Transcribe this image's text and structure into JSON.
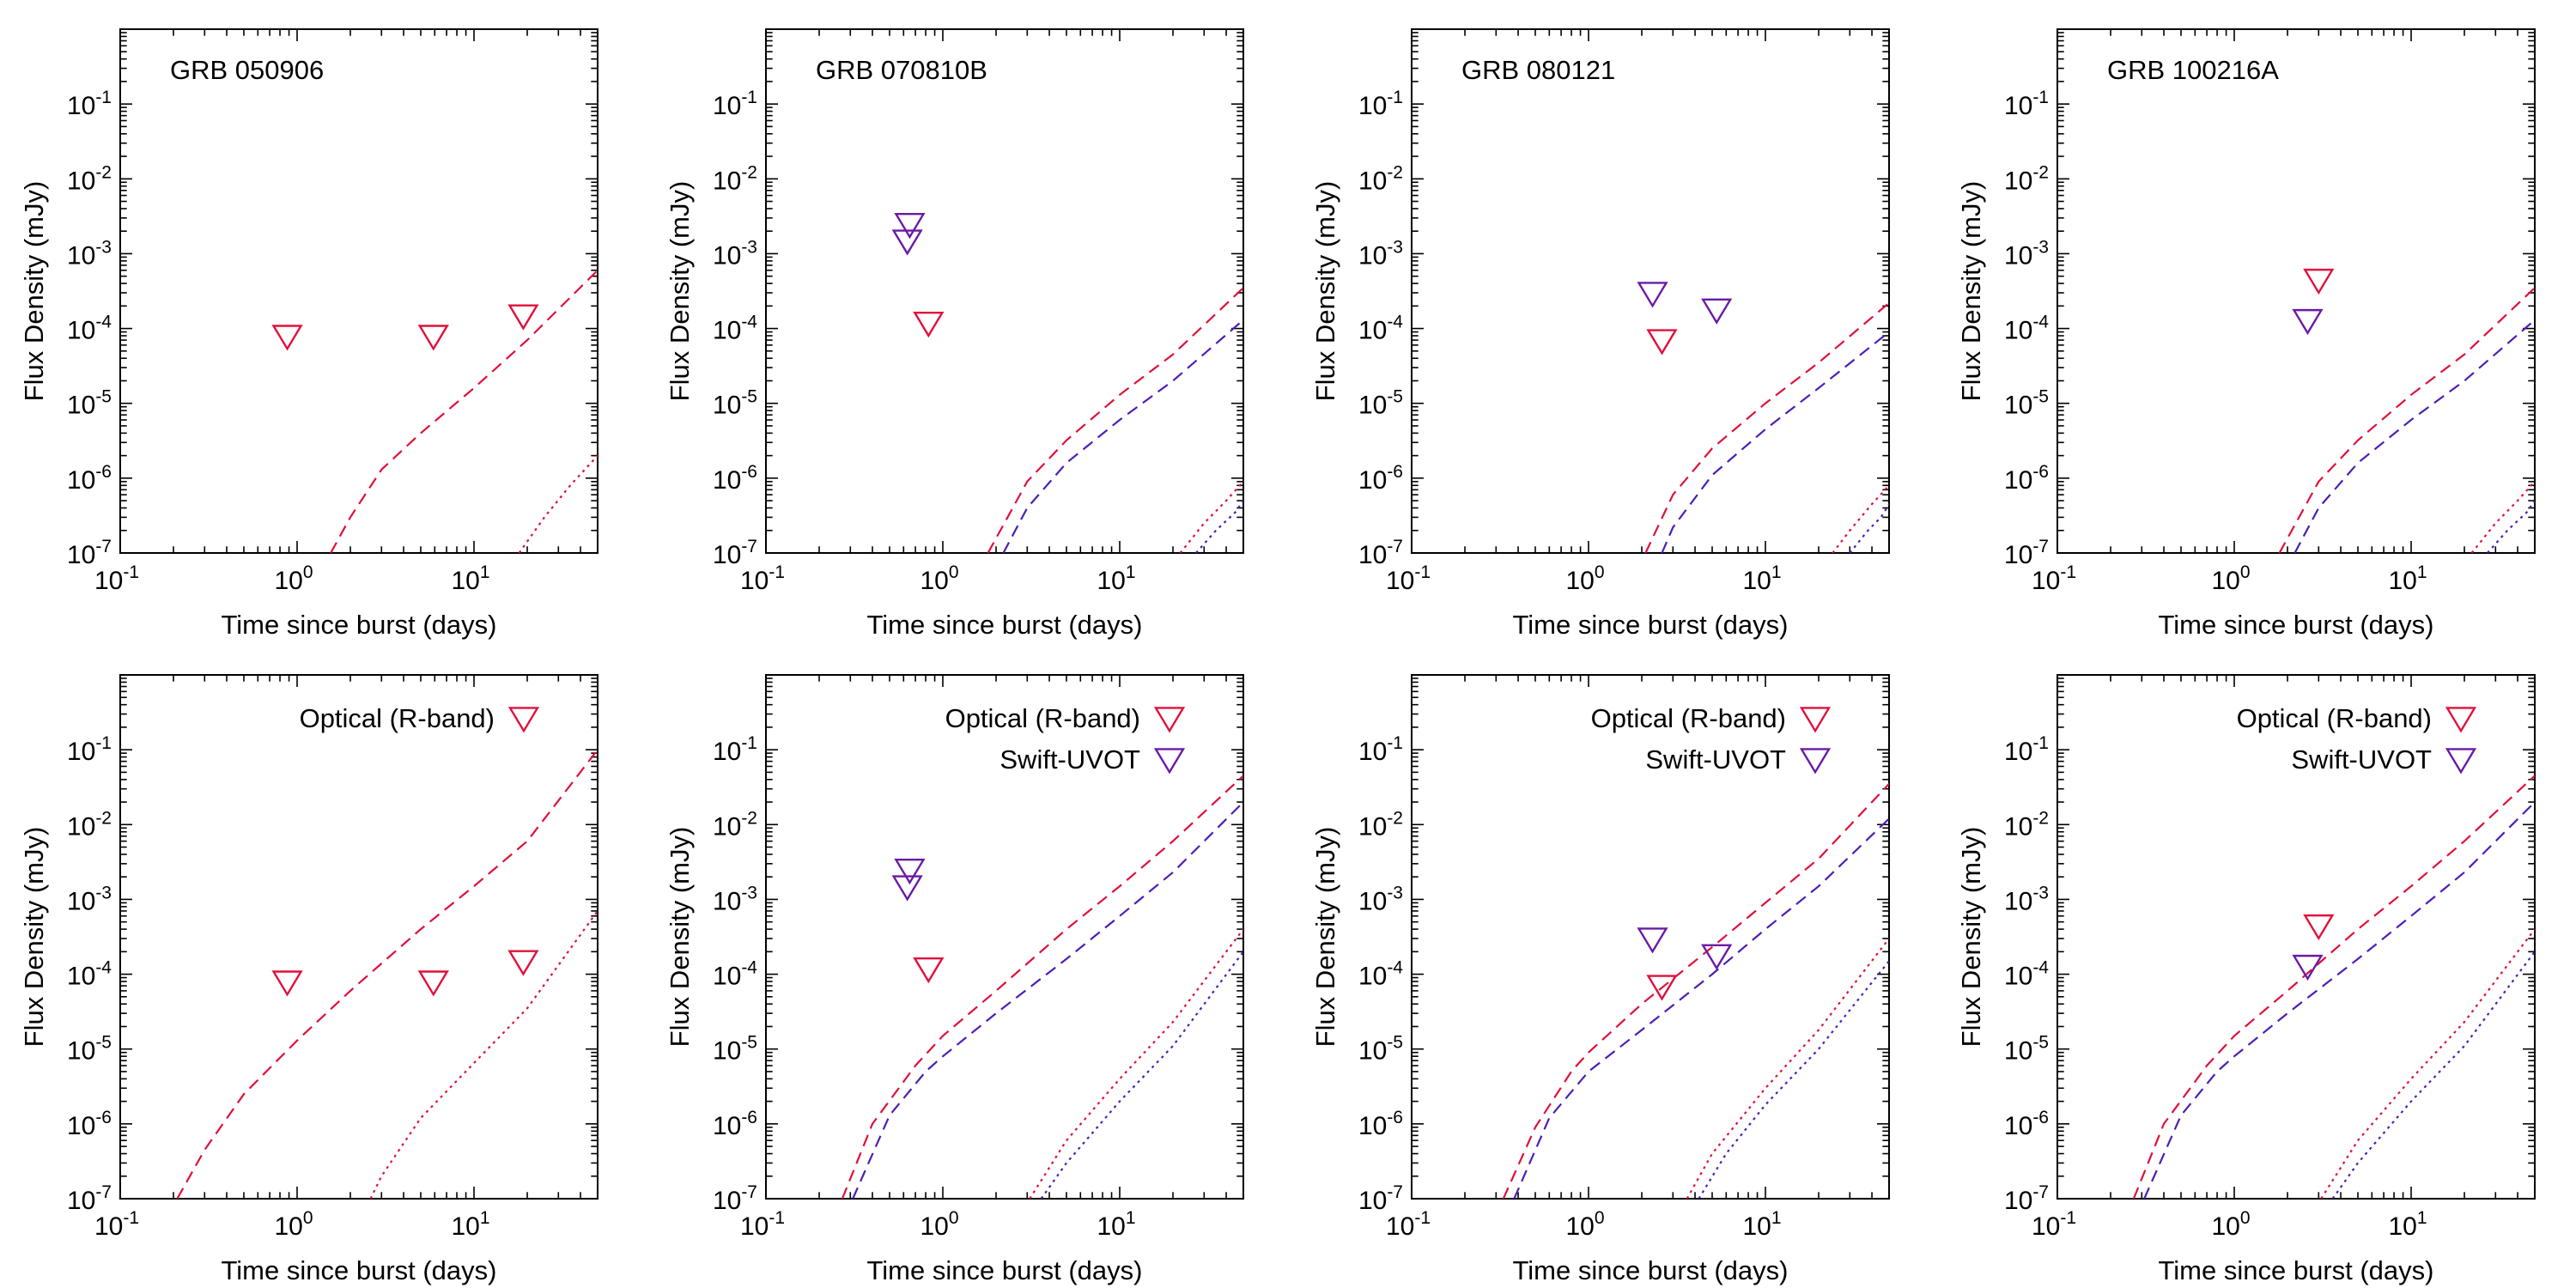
{
  "colors": {
    "optical": "#e0103c",
    "uvot": "#6a1aa6",
    "optical_model": "#e0103c",
    "uvot_model": "#4b1fb5",
    "axis": "#000000"
  },
  "axes_common": {
    "xlabel": "Time since burst (days)",
    "ylabel": "Flux Density (mJy)",
    "xscale": "log",
    "yscale": "log",
    "xlim": [
      0.1,
      50
    ],
    "ylim": [
      1e-07,
      1
    ],
    "x_ticks": [
      {
        "base": "10",
        "exp": "-1",
        "value": 0.1
      },
      {
        "base": "10",
        "exp": "0",
        "value": 1
      },
      {
        "base": "10",
        "exp": "1",
        "value": 10
      }
    ],
    "y_ticks": [
      {
        "base": "10",
        "exp": "-7",
        "value": 1e-07
      },
      {
        "base": "10",
        "exp": "-6",
        "value": 1e-06
      },
      {
        "base": "10",
        "exp": "-5",
        "value": 1e-05
      },
      {
        "base": "10",
        "exp": "-4",
        "value": 0.0001
      },
      {
        "base": "10",
        "exp": "-3",
        "value": 0.001
      },
      {
        "base": "10",
        "exp": "-2",
        "value": 0.01
      },
      {
        "base": "10",
        "exp": "-1",
        "value": 0.1
      }
    ]
  },
  "chart_data": [
    {
      "type": "scatter",
      "title": "GRB 050906",
      "legend": [],
      "points": [
        {
          "series": "optical",
          "x": 0.88,
          "y": 8e-05
        },
        {
          "series": "optical",
          "x": 5.9,
          "y": 8e-05
        },
        {
          "series": "optical",
          "x": 19,
          "y": 0.00015
        }
      ],
      "model_curves": [
        {
          "series": "optical",
          "style": "dashed",
          "x": [
            1.55,
            2,
            3,
            5,
            10,
            20,
            50
          ],
          "y": [
            1e-07,
            3e-07,
            1.3e-06,
            4e-06,
            1.6e-05,
            7e-05,
            0.0006
          ]
        },
        {
          "series": "optical",
          "style": "dotted",
          "x": [
            18,
            25,
            35,
            50
          ],
          "y": [
            1e-07,
            3e-07,
            8e-07,
            2e-06
          ]
        }
      ]
    },
    {
      "type": "scatter",
      "title": "GRB 070810B",
      "legend": [],
      "points": [
        {
          "series": "uvot",
          "x": 0.65,
          "y": 0.0025
        },
        {
          "series": "uvot",
          "x": 0.63,
          "y": 0.0015
        },
        {
          "series": "optical",
          "x": 0.83,
          "y": 0.00012
        }
      ],
      "model_curves": [
        {
          "series": "optical",
          "style": "dashed",
          "x": [
            1.8,
            3,
            5,
            10,
            20,
            50
          ],
          "y": [
            1e-07,
            9e-07,
            3.2e-06,
            1.3e-05,
            4.5e-05,
            0.00035
          ]
        },
        {
          "series": "uvot",
          "style": "dashed",
          "x": [
            2.2,
            3,
            5,
            10,
            20,
            50
          ],
          "y": [
            1e-07,
            4e-07,
            1.6e-06,
            6e-06,
            2e-05,
            0.00013
          ]
        },
        {
          "series": "optical",
          "style": "dotted",
          "x": [
            22,
            30,
            40,
            50
          ],
          "y": [
            1e-07,
            2.5e-07,
            5e-07,
            9e-07
          ]
        },
        {
          "series": "uvot",
          "style": "dotted",
          "x": [
            27,
            35,
            45,
            50
          ],
          "y": [
            1e-07,
            2e-07,
            3.5e-07,
            5e-07
          ]
        }
      ]
    },
    {
      "type": "scatter",
      "title": "GRB 080121",
      "legend": [],
      "points": [
        {
          "series": "uvot",
          "x": 2.3,
          "y": 0.0003
        },
        {
          "series": "optical",
          "x": 2.6,
          "y": 7e-05
        },
        {
          "series": "uvot",
          "x": 5.3,
          "y": 0.00018
        }
      ],
      "model_curves": [
        {
          "series": "optical",
          "style": "dashed",
          "x": [
            2.1,
            3,
            5,
            10,
            20,
            50
          ],
          "y": [
            1e-07,
            6e-07,
            2.5e-06,
            1e-05,
            3.5e-05,
            0.00022
          ]
        },
        {
          "series": "uvot",
          "style": "dashed",
          "x": [
            2.6,
            3,
            5,
            10,
            20,
            50
          ],
          "y": [
            1e-07,
            2.2e-07,
            1.1e-06,
            4.5e-06,
            1.6e-05,
            9e-05
          ]
        },
        {
          "series": "optical",
          "style": "dotted",
          "x": [
            24,
            30,
            40,
            50
          ],
          "y": [
            1e-07,
            2e-07,
            4.5e-07,
            8e-07
          ]
        },
        {
          "series": "uvot",
          "style": "dotted",
          "x": [
            30,
            38,
            45,
            50
          ],
          "y": [
            1e-07,
            2e-07,
            3e-07,
            4.5e-07
          ]
        }
      ]
    },
    {
      "type": "scatter",
      "title": "GRB 100216A",
      "legend": [],
      "points": [
        {
          "series": "optical",
          "x": 3.0,
          "y": 0.00045
        },
        {
          "series": "uvot",
          "x": 2.6,
          "y": 0.00013
        }
      ],
      "model_curves": [
        {
          "series": "optical",
          "style": "dashed",
          "x": [
            1.8,
            3,
            5,
            10,
            20,
            50
          ],
          "y": [
            1e-07,
            9e-07,
            3.2e-06,
            1.3e-05,
            4.5e-05,
            0.00035
          ]
        },
        {
          "series": "uvot",
          "style": "dashed",
          "x": [
            2.2,
            3,
            5,
            10,
            20,
            50
          ],
          "y": [
            1e-07,
            4e-07,
            1.6e-06,
            6e-06,
            2e-05,
            0.00013
          ]
        },
        {
          "series": "optical",
          "style": "dotted",
          "x": [
            22,
            30,
            40,
            50
          ],
          "y": [
            1e-07,
            2.5e-07,
            5e-07,
            9e-07
          ]
        },
        {
          "series": "uvot",
          "style": "dotted",
          "x": [
            27,
            35,
            45,
            50
          ],
          "y": [
            1e-07,
            2e-07,
            3.5e-07,
            5e-07
          ]
        }
      ]
    },
    {
      "type": "scatter",
      "title": "",
      "legend": [
        {
          "series": "optical",
          "label": "Optical (R-band)"
        }
      ],
      "points": [
        {
          "series": "optical",
          "x": 0.88,
          "y": 8e-05
        },
        {
          "series": "optical",
          "x": 5.9,
          "y": 8e-05
        },
        {
          "series": "optical",
          "x": 19,
          "y": 0.00015
        }
      ],
      "model_curves": [
        {
          "series": "optical",
          "style": "dashed",
          "x": [
            0.21,
            0.3,
            0.5,
            1,
            2,
            5,
            10,
            20,
            50
          ],
          "y": [
            1e-07,
            4.5e-07,
            2.5e-06,
            1.3e-05,
            6e-05,
            0.0004,
            0.0015,
            0.006,
            0.1
          ]
        },
        {
          "series": "optical",
          "style": "dotted",
          "x": [
            2.6,
            3,
            5,
            10,
            20,
            50
          ],
          "y": [
            1e-07,
            2e-07,
            1.2e-06,
            6.5e-06,
            3.5e-05,
            0.0007
          ]
        }
      ]
    },
    {
      "type": "scatter",
      "title": "",
      "legend": [
        {
          "series": "optical",
          "label": "Optical (R-band)"
        },
        {
          "series": "uvot",
          "label": "Swift-UVOT"
        }
      ],
      "points": [
        {
          "series": "uvot",
          "x": 0.65,
          "y": 0.0025
        },
        {
          "series": "uvot",
          "x": 0.63,
          "y": 0.0015
        },
        {
          "series": "optical",
          "x": 0.83,
          "y": 0.00012
        }
      ],
      "model_curves": [
        {
          "series": "optical",
          "style": "dashed",
          "x": [
            0.27,
            0.4,
            0.7,
            1,
            2,
            5,
            10,
            20,
            50
          ],
          "y": [
            1e-07,
            1e-06,
            6e-06,
            1.5e-05,
            6e-05,
            0.0004,
            0.0015,
            0.006,
            0.045
          ]
        },
        {
          "series": "uvot",
          "style": "dashed",
          "x": [
            0.31,
            0.5,
            0.8,
            1,
            2,
            5,
            10,
            20,
            50
          ],
          "y": [
            1e-07,
            1.3e-06,
            5e-06,
            8e-06,
            3e-05,
            0.00016,
            0.0006,
            0.0023,
            0.02
          ]
        },
        {
          "series": "optical",
          "style": "dotted",
          "x": [
            3.1,
            5,
            10,
            20,
            50
          ],
          "y": [
            1e-07,
            6e-07,
            4e-06,
            2.3e-05,
            0.0004
          ]
        },
        {
          "series": "uvot",
          "style": "dotted",
          "x": [
            3.6,
            5,
            10,
            20,
            50
          ],
          "y": [
            1e-07,
            3e-07,
            2e-06,
            1.1e-05,
            0.0002
          ]
        }
      ]
    },
    {
      "type": "scatter",
      "title": "",
      "legend": [
        {
          "series": "optical",
          "label": "Optical (R-band)"
        },
        {
          "series": "uvot",
          "label": "Swift-UVOT"
        }
      ],
      "points": [
        {
          "series": "uvot",
          "x": 2.3,
          "y": 0.0003
        },
        {
          "series": "optical",
          "x": 2.6,
          "y": 7e-05
        },
        {
          "series": "uvot",
          "x": 5.3,
          "y": 0.00018
        }
      ],
      "model_curves": [
        {
          "series": "optical",
          "style": "dashed",
          "x": [
            0.33,
            0.5,
            0.8,
            1,
            2,
            5,
            10,
            20,
            50
          ],
          "y": [
            1e-07,
            9e-07,
            5e-06,
            9e-06,
            4e-05,
            0.00023,
            0.0009,
            0.0035,
            0.035
          ]
        },
        {
          "series": "uvot",
          "style": "dashed",
          "x": [
            0.38,
            0.6,
            1,
            2,
            5,
            10,
            20,
            50
          ],
          "y": [
            1e-07,
            1.2e-06,
            5e-06,
            1.8e-05,
            0.0001,
            0.0004,
            0.0015,
            0.012
          ]
        },
        {
          "series": "optical",
          "style": "dotted",
          "x": [
            3.6,
            5,
            10,
            20,
            50
          ],
          "y": [
            1e-07,
            4e-07,
            3e-06,
            1.8e-05,
            0.0003
          ]
        },
        {
          "series": "uvot",
          "style": "dotted",
          "x": [
            4.2,
            6,
            10,
            20,
            50
          ],
          "y": [
            1e-07,
            4e-07,
            1.8e-06,
            1e-05,
            0.00015
          ]
        }
      ]
    },
    {
      "type": "scatter",
      "title": "",
      "legend": [
        {
          "series": "optical",
          "label": "Optical (R-band)"
        },
        {
          "series": "uvot",
          "label": "Swift-UVOT"
        }
      ],
      "points": [
        {
          "series": "optical",
          "x": 3.0,
          "y": 0.00045
        },
        {
          "series": "uvot",
          "x": 2.6,
          "y": 0.00013
        }
      ],
      "model_curves": [
        {
          "series": "optical",
          "style": "dashed",
          "x": [
            0.27,
            0.4,
            0.7,
            1,
            2,
            5,
            10,
            20,
            50
          ],
          "y": [
            1e-07,
            1e-06,
            6e-06,
            1.5e-05,
            6e-05,
            0.0004,
            0.0015,
            0.006,
            0.045
          ]
        },
        {
          "series": "uvot",
          "style": "dashed",
          "x": [
            0.31,
            0.5,
            0.8,
            1,
            2,
            5,
            10,
            20,
            50
          ],
          "y": [
            1e-07,
            1.3e-06,
            5e-06,
            8e-06,
            3e-05,
            0.00016,
            0.0006,
            0.0023,
            0.02
          ]
        },
        {
          "series": "optical",
          "style": "dotted",
          "x": [
            3.1,
            5,
            10,
            20,
            50
          ],
          "y": [
            1e-07,
            6e-07,
            4e-06,
            2.3e-05,
            0.0004
          ]
        },
        {
          "series": "uvot",
          "style": "dotted",
          "x": [
            3.6,
            5,
            10,
            20,
            50
          ],
          "y": [
            1e-07,
            3e-07,
            2e-06,
            1.1e-05,
            0.0002
          ]
        }
      ]
    }
  ]
}
